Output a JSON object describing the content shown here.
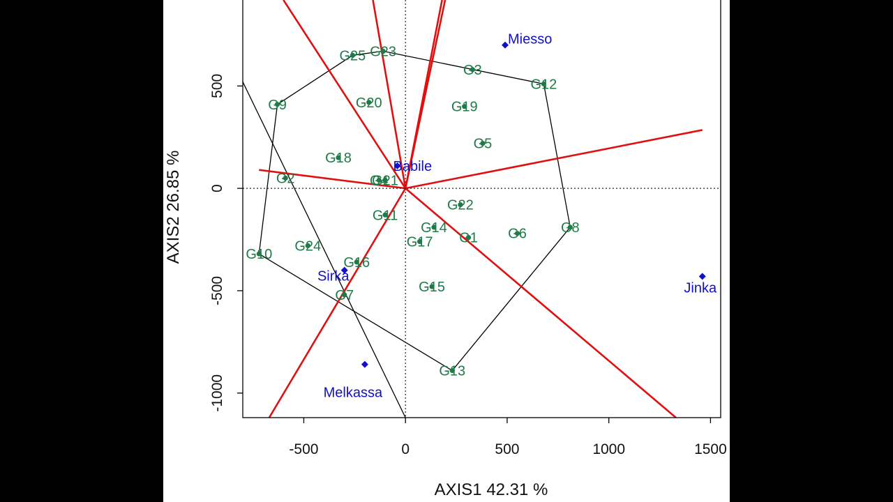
{
  "chart_data": {
    "type": "scatter",
    "xlabel": "AXIS1 42.31 %",
    "ylabel": "AXIS2 26.85 %",
    "xlim": [
      -800,
      1550
    ],
    "ylim": [
      -1120,
      920
    ],
    "x_ticks": [
      -500,
      0,
      500,
      1000,
      1500
    ],
    "y_ticks": [
      -1000,
      -500,
      0,
      500
    ],
    "genotypes": [
      {
        "label": "G1",
        "x": 310,
        "y": -240
      },
      {
        "label": "G2",
        "x": -590,
        "y": 50
      },
      {
        "label": "G3",
        "x": 330,
        "y": 580
      },
      {
        "label": "G4",
        "x": -130,
        "y": 40
      },
      {
        "label": "G5",
        "x": 380,
        "y": 220
      },
      {
        "label": "G6",
        "x": 550,
        "y": -220
      },
      {
        "label": "G7",
        "x": -300,
        "y": -520
      },
      {
        "label": "G8",
        "x": 810,
        "y": -190
      },
      {
        "label": "G9",
        "x": -630,
        "y": 410
      },
      {
        "label": "G10",
        "x": -720,
        "y": -320
      },
      {
        "label": "G11",
        "x": -100,
        "y": -130
      },
      {
        "label": "G12",
        "x": 680,
        "y": 510
      },
      {
        "label": "G13",
        "x": 230,
        "y": -890
      },
      {
        "label": "G14",
        "x": 140,
        "y": -190
      },
      {
        "label": "G15",
        "x": 130,
        "y": -480
      },
      {
        "label": "G16",
        "x": -240,
        "y": -360
      },
      {
        "label": "G17",
        "x": 70,
        "y": -260
      },
      {
        "label": "G18",
        "x": -330,
        "y": 150
      },
      {
        "label": "G19",
        "x": 290,
        "y": 400
      },
      {
        "label": "G20",
        "x": -180,
        "y": 420
      },
      {
        "label": "G21",
        "x": -100,
        "y": 40
      },
      {
        "label": "G22",
        "x": 270,
        "y": -80
      },
      {
        "label": "G23",
        "x": -110,
        "y": 670
      },
      {
        "label": "G24",
        "x": -480,
        "y": -280
      },
      {
        "label": "G25",
        "x": -260,
        "y": 650
      }
    ],
    "environments": [
      {
        "label": "Miesso",
        "x": 490,
        "y": 700
      },
      {
        "label": "Babile",
        "x": -40,
        "y": 110
      },
      {
        "label": "Jinka",
        "x": 1460,
        "y": -430
      },
      {
        "label": "Sirka",
        "x": -300,
        "y": -400
      },
      {
        "label": "Melkassa",
        "x": -200,
        "y": -860
      }
    ],
    "polygon_vertices": [
      "G23",
      "G12",
      "G8",
      "G13",
      "G10",
      "G9",
      "G25"
    ],
    "sector_rays": [
      [
        -600,
        920
      ],
      [
        -160,
        920
      ],
      [
        180,
        920
      ],
      [
        195,
        920
      ],
      [
        1460,
        285
      ],
      [
        -720,
        90
      ],
      [
        -670,
        -1120
      ],
      [
        1330,
        -1120
      ]
    ],
    "colors": {
      "genotype": "#1e7a46",
      "environment": "#1010c8",
      "sector_lines": "#e01010",
      "polygon": "#000000"
    }
  }
}
